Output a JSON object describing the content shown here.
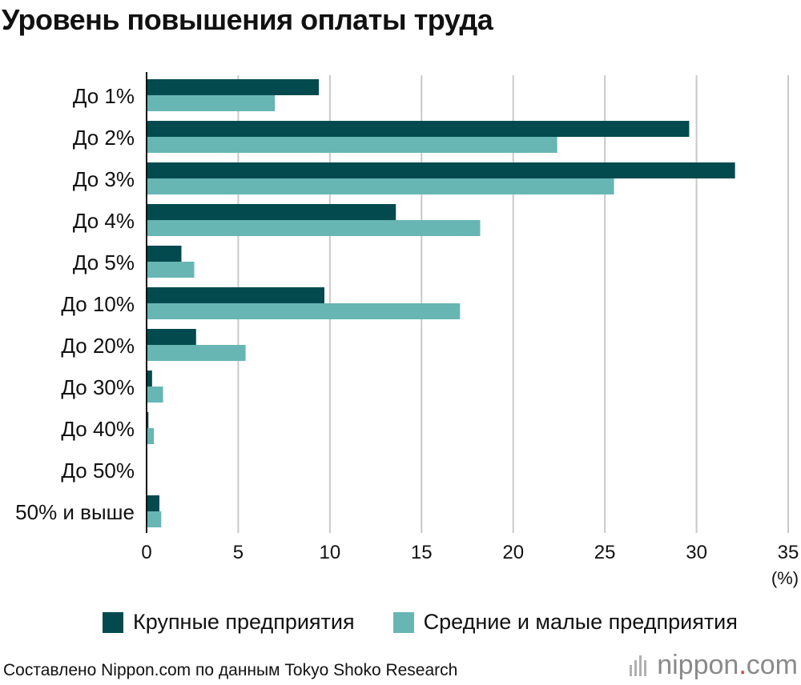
{
  "chart_data": {
    "type": "bar",
    "orientation": "horizontal",
    "title": "Уровень повышения оплаты труда",
    "unit_label": "(%)",
    "categories": [
      "До 1%",
      "До 2%",
      "До 3%",
      "До 4%",
      "До 5%",
      "До 10%",
      "До 20%",
      "До 30%",
      "До 40%",
      "До 50%",
      "50% и выше"
    ],
    "series": [
      {
        "name": "Крупные предприятия",
        "color": "#024a4e",
        "values": [
          9.4,
          29.6,
          32.1,
          13.6,
          1.9,
          9.7,
          2.7,
          0.3,
          0.1,
          0.0,
          0.7
        ]
      },
      {
        "name": "Средние и малые предприятия",
        "color": "#67b6b3",
        "values": [
          7.0,
          22.4,
          25.5,
          18.2,
          2.6,
          17.1,
          5.4,
          0.9,
          0.4,
          0.0,
          0.8
        ]
      }
    ],
    "xlim": [
      0,
      35
    ],
    "xticks": [
      0,
      5,
      10,
      15,
      20,
      25,
      30,
      35
    ],
    "grid": true,
    "legend_position": "bottom"
  },
  "source": "Составлено Nippon.com по данным Tokyo Shoko Research",
  "logo": {
    "name": "nippon",
    "dot": ".",
    "suffix": "com"
  },
  "colors": {
    "grid": "#c9c9c9",
    "axis": "#111111"
  }
}
